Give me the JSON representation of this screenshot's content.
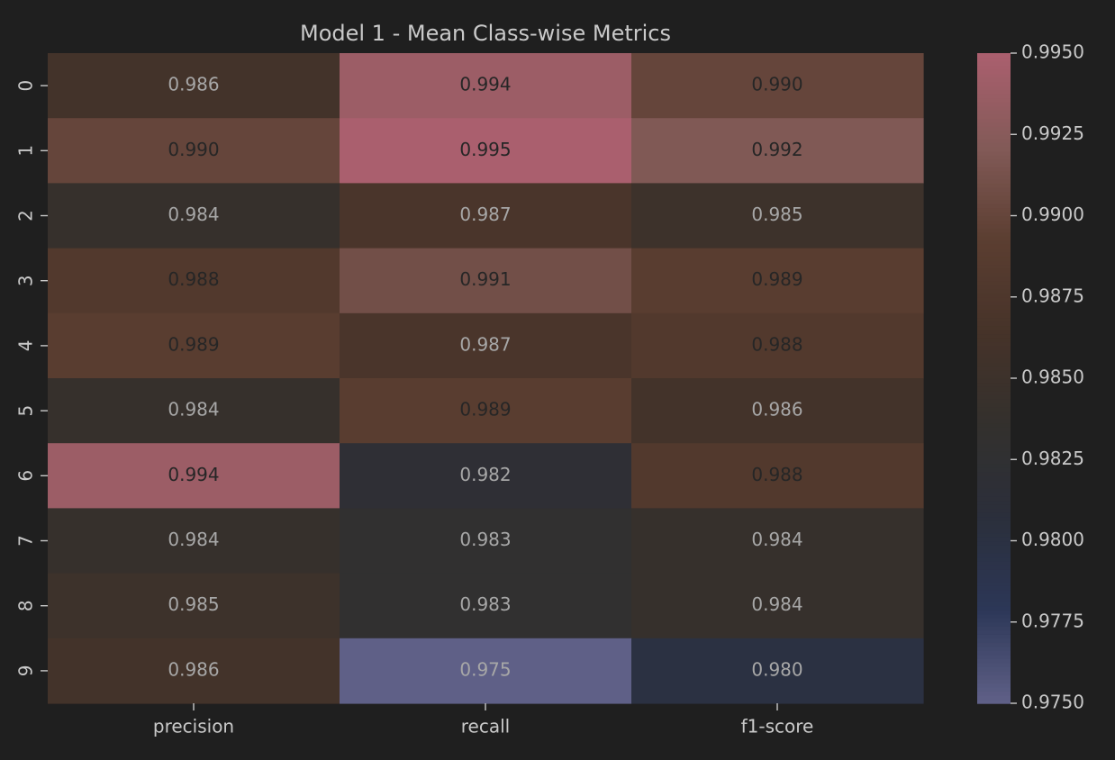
{
  "chart_data": {
    "type": "heatmap",
    "title": "Model 1 - Mean Class-wise Metrics",
    "xlabel": "",
    "ylabel": "",
    "columns": [
      "precision",
      "recall",
      "f1-score"
    ],
    "rows": [
      "0",
      "1",
      "2",
      "3",
      "4",
      "5",
      "6",
      "7",
      "8",
      "9"
    ],
    "values": [
      [
        0.986,
        0.994,
        0.99
      ],
      [
        0.99,
        0.995,
        0.992
      ],
      [
        0.984,
        0.987,
        0.985
      ],
      [
        0.988,
        0.991,
        0.989
      ],
      [
        0.989,
        0.987,
        0.988
      ],
      [
        0.984,
        0.989,
        0.986
      ],
      [
        0.994,
        0.982,
        0.988
      ],
      [
        0.984,
        0.983,
        0.984
      ],
      [
        0.985,
        0.983,
        0.984
      ],
      [
        0.986,
        0.975,
        0.98
      ]
    ],
    "value_format": "0.000",
    "colorbar": {
      "min": 0.975,
      "max": 0.995,
      "ticks": [
        "0.9750",
        "0.9775",
        "0.9800",
        "0.9825",
        "0.9850",
        "0.9875",
        "0.9900",
        "0.9925",
        "0.9950"
      ],
      "placement": "right"
    },
    "colors": {
      "background": "#1f1f1f",
      "text": "#c9c9c9",
      "dark_annotation": "#262626",
      "light_annotation": "#a7a7a7",
      "scale": [
        "#5f6087",
        "#2c3757",
        "#2b2f3b",
        "#33302d",
        "#463329",
        "#5b3e31",
        "#825a57",
        "#aa5f6e"
      ]
    }
  }
}
